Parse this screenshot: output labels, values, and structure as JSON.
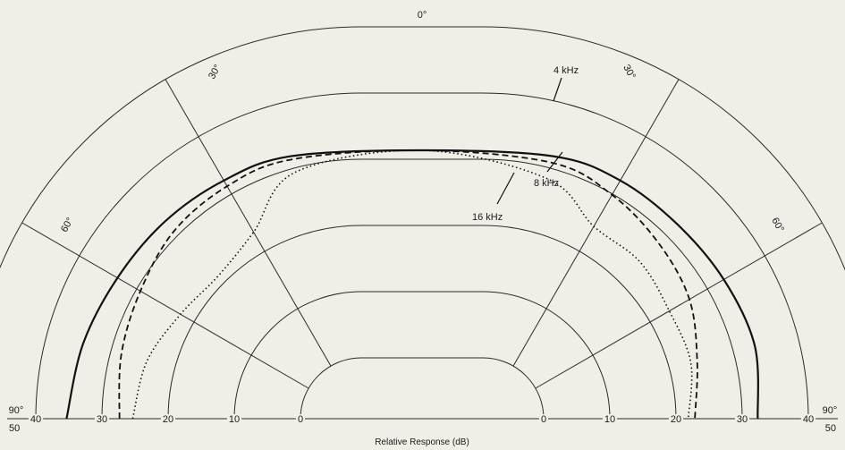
{
  "chart_data": {
    "type": "polar",
    "xlabel": "Relative Response (dB)",
    "r_ticks_left": [
      "50",
      "40",
      "30",
      "20",
      "10",
      "0"
    ],
    "r_ticks_right": [
      "0",
      "10",
      "20",
      "30",
      "40",
      "50"
    ],
    "angle_labels": [
      "90°",
      "60°",
      "30°",
      "0°",
      "30°",
      "60°",
      "90°"
    ],
    "grid": true,
    "series": [
      {
        "name": "4 kHz",
        "style": "solid",
        "points": [
          [
            -90,
            34
          ],
          [
            -75,
            33
          ],
          [
            -60,
            32
          ],
          [
            -45,
            31.5
          ],
          [
            -30,
            31
          ],
          [
            -15,
            30.5
          ],
          [
            0,
            30
          ],
          [
            15,
            30.5
          ],
          [
            30,
            31
          ],
          [
            45,
            31
          ],
          [
            60,
            31.5
          ],
          [
            75,
            32
          ],
          [
            90,
            31
          ]
        ]
      },
      {
        "name": "8 kHz",
        "style": "dashed",
        "points": [
          [
            -90,
            26
          ],
          [
            -75,
            27
          ],
          [
            -60,
            28
          ],
          [
            -45,
            29.5
          ],
          [
            -30,
            30
          ],
          [
            -15,
            30
          ],
          [
            0,
            30
          ],
          [
            15,
            29.5
          ],
          [
            30,
            28.5
          ],
          [
            45,
            27
          ],
          [
            60,
            25.5
          ],
          [
            75,
            23
          ],
          [
            90,
            21.5
          ]
        ]
      },
      {
        "name": "16 kHz",
        "style": "dotted",
        "points": [
          [
            -90,
            24
          ],
          [
            -75,
            23
          ],
          [
            -60,
            21
          ],
          [
            -45,
            20
          ],
          [
            -30,
            22
          ],
          [
            -15,
            28
          ],
          [
            0,
            30
          ],
          [
            15,
            27
          ],
          [
            30,
            23
          ],
          [
            45,
            23
          ],
          [
            60,
            22
          ],
          [
            75,
            22
          ],
          [
            90,
            20.5
          ]
        ]
      }
    ]
  }
}
